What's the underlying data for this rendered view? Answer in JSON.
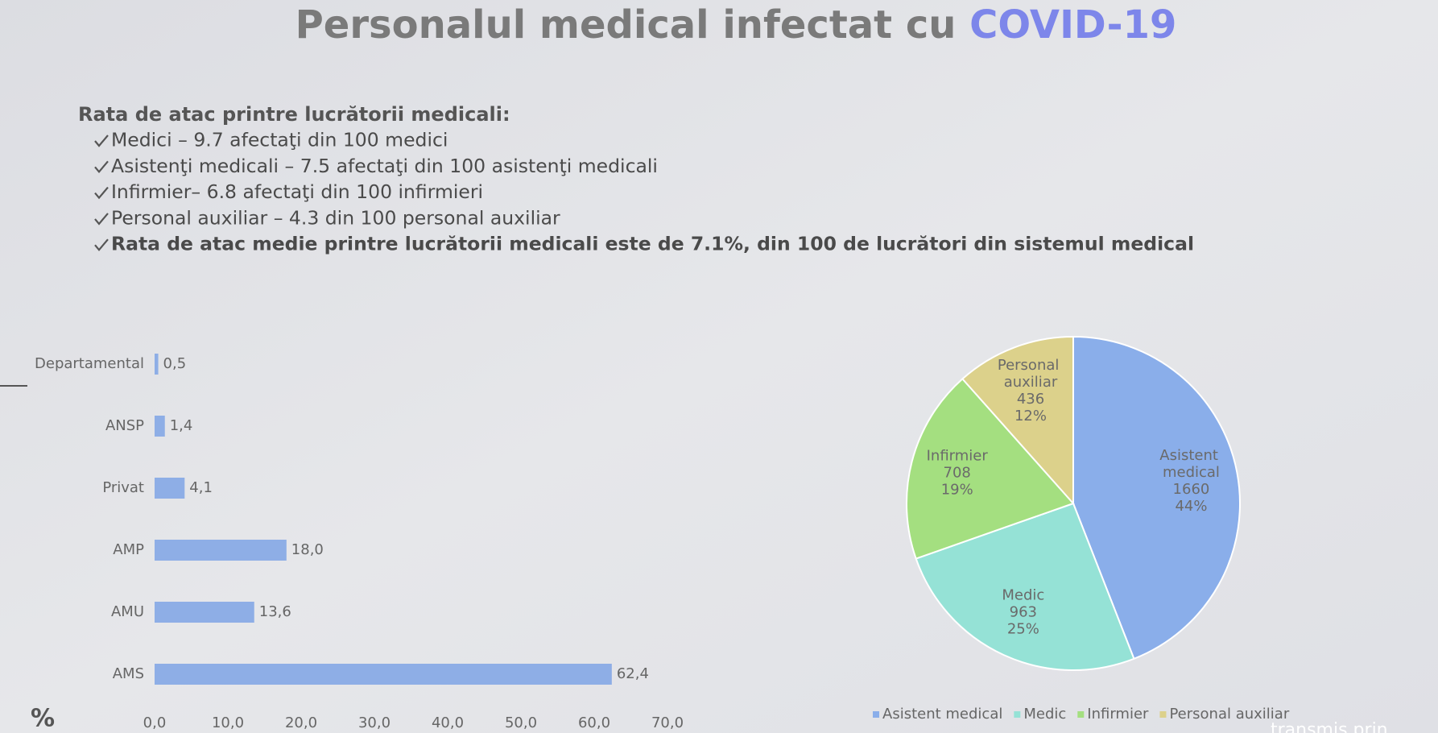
{
  "title": {
    "text": "Personalul medical infectat cu",
    "highlight": "COVID-19"
  },
  "subheading": "Rata de atac printre lucrătorii medicali:",
  "bullets": [
    "Medici – 9.7 afectaţi din 100 medici",
    "Asistenţi medicali – 7.5 afectaţi din 100 asistenţi medicali",
    "Infirmier– 6.8 afectaţi din 100 infirmieri",
    "Personal auxiliar – 4.3 din 100 personal auxiliar",
    "Rata de atac medie printre lucrătorii medicali este de 7.1%,  din 100 de lucrători din sistemul medical"
  ],
  "watermark": "transmis prin",
  "chart_data": [
    {
      "type": "hbar",
      "x_label": "%",
      "categories": [
        "Departamental",
        "ANSP",
        "Privat",
        "AMP",
        "AMU",
        "AMS"
      ],
      "values": [
        0.5,
        1.4,
        4.1,
        18.0,
        13.6,
        62.4
      ],
      "value_labels": [
        "0,5",
        "1,4",
        "4,1",
        "18,0",
        "13,6",
        "62,4"
      ],
      "color": "#8eaee6",
      "xlim": [
        0,
        70
      ],
      "xticks": [
        {
          "value": 0,
          "label": "0,0"
        },
        {
          "value": 10,
          "label": "10,0"
        },
        {
          "value": 20,
          "label": "20,0"
        },
        {
          "value": 30,
          "label": "30,0"
        },
        {
          "value": 40,
          "label": "40,0"
        },
        {
          "value": 50,
          "label": "50,0"
        },
        {
          "value": 60,
          "label": "60,0"
        },
        {
          "value": 70,
          "label": "70,0"
        }
      ],
      "grid": false
    },
    {
      "type": "pie",
      "categories": [
        "Asistent medical",
        "Medic",
        "Infirmier",
        "Personal auxiliar"
      ],
      "values": [
        1660,
        963,
        708,
        436
      ],
      "percent_labels": [
        "44%",
        "25%",
        "19%",
        "12%"
      ],
      "colors": [
        "#8aaeea",
        "#95e2d6",
        "#a4df80",
        "#dcd18b"
      ],
      "legend": "bottom"
    }
  ]
}
